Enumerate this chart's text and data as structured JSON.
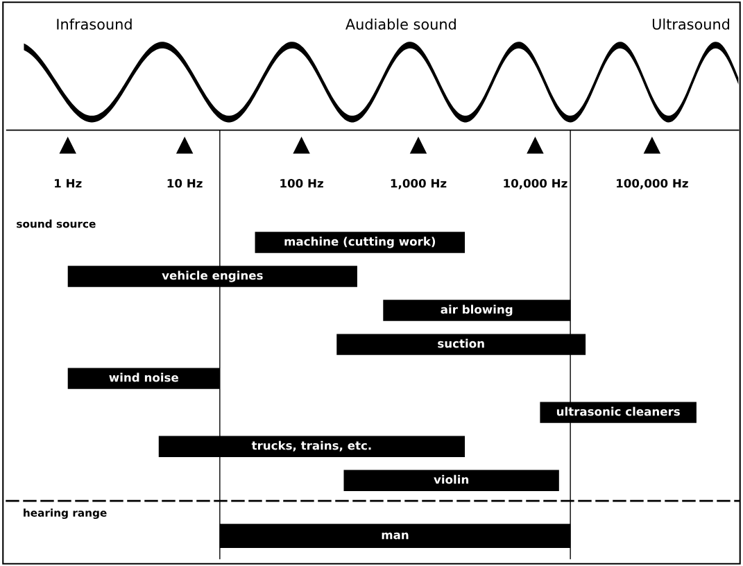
{
  "chart_data": [
    {
      "type": "bar",
      "orientation": "horizontal",
      "log": "x",
      "color": "#000000",
      "annotations": [
        "Infrasound",
        "Audiable sound",
        "Ultrasound",
        "sound source"
      ],
      "categories": [
        "machine (cutting work)",
        "vehicle engines",
        "air blowing",
        "suction",
        "wind noise",
        "ultrasonic cleaners",
        "trucks, trains, etc.",
        "violin"
      ],
      "base": [
        40,
        1,
        500,
        200,
        1,
        11000,
        6,
        230
      ],
      "values": [
        2460,
        299,
        19500,
        26800,
        19,
        229000,
        2494,
        15770
      ],
      "xlim": [
        0.3,
        550000
      ],
      "xticks": [
        {
          "value": 1,
          "label": "1 Hz"
        },
        {
          "value": 10,
          "label": "10 Hz"
        },
        {
          "value": 100,
          "label": "100 Hz"
        },
        {
          "value": 1000,
          "label": "1,000 Hz"
        },
        {
          "value": 10000,
          "label": "10,000 Hz"
        },
        {
          "value": 100000,
          "label": "100,000 Hz"
        }
      ],
      "ref_lines": [
        {
          "axis": "x",
          "value": 20,
          "color": "#000000"
        },
        {
          "axis": "x",
          "value": 20000,
          "color": "#000000"
        }
      ],
      "grid": false,
      "legend": false
    },
    {
      "type": "bar",
      "orientation": "horizontal",
      "log": "x",
      "color": "#000000",
      "annotations": [
        "hearing range"
      ],
      "categories": [
        "man"
      ],
      "base": [
        20
      ],
      "values": [
        19980
      ],
      "xlim": [
        0.3,
        550000
      ],
      "ref_lines": [
        {
          "axis": "x",
          "value": 20,
          "color": "#000000"
        },
        {
          "axis": "x",
          "value": 20000,
          "color": "#000000"
        }
      ],
      "grid": false,
      "legend": false
    }
  ]
}
